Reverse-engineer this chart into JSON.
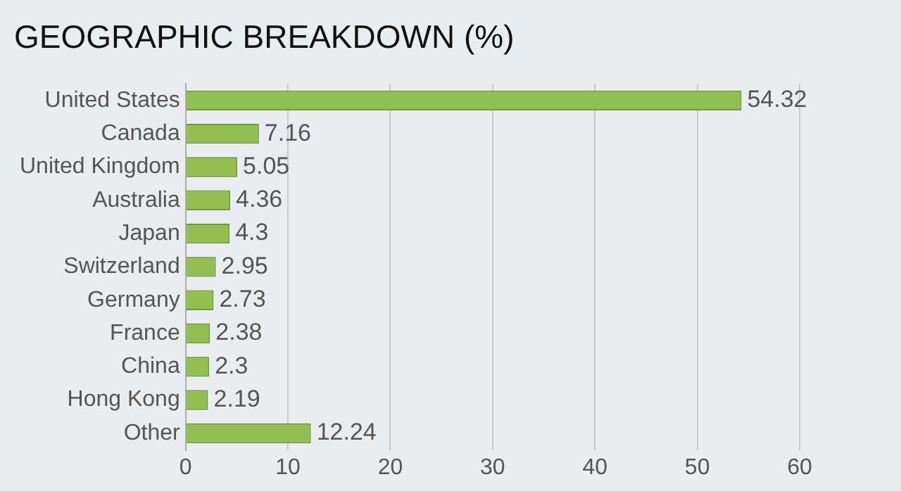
{
  "chart_data": {
    "type": "bar",
    "orientation": "horizontal",
    "title": "GEOGRAPHIC BREAKDOWN (%)",
    "categories": [
      "United States",
      "Canada",
      "United Kingdom",
      "Australia",
      "Japan",
      "Switzerland",
      "Germany",
      "France",
      "China",
      "Hong Kong",
      "Other"
    ],
    "values": [
      54.32,
      7.16,
      5.05,
      4.36,
      4.3,
      2.95,
      2.73,
      2.38,
      2.3,
      2.19,
      12.24
    ],
    "color": "#92c050",
    "xlim": [
      0,
      60
    ],
    "xticks": [
      0,
      10,
      20,
      30,
      40,
      50,
      60
    ],
    "grid": "x",
    "data_labels": true,
    "legend": false
  }
}
